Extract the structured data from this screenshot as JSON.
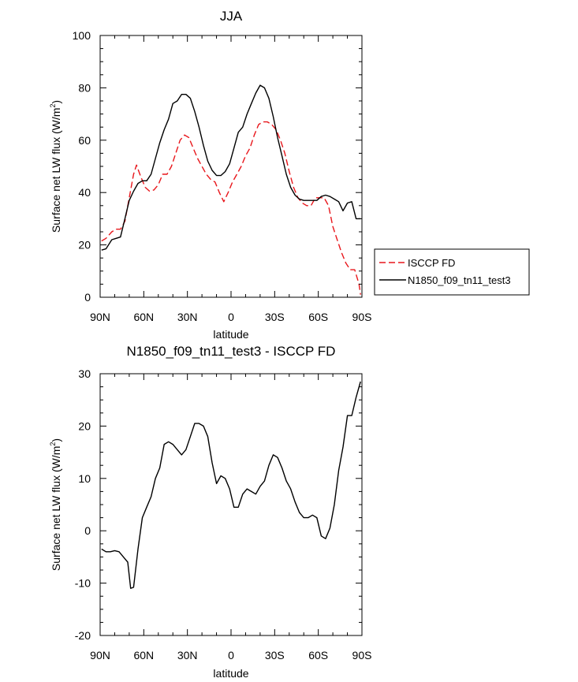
{
  "chart_data": [
    {
      "type": "line",
      "title": "JJA",
      "xlabel": "latitude",
      "ylabel": "Surface net LW flux (W/m",
      "ylabel_sup": "2",
      "ylabel_close": ")",
      "xlim": [
        90,
        -90
      ],
      "ylim": [
        0,
        100
      ],
      "xticks": [
        90,
        60,
        30,
        0,
        -30,
        -60,
        -90
      ],
      "xtick_labels": [
        "90N",
        "60N",
        "30N",
        "0",
        "30S",
        "60S",
        "90S"
      ],
      "yticks": [
        0,
        20,
        40,
        60,
        80,
        100
      ],
      "ytick_labels": [
        "0",
        "20",
        "40",
        "60",
        "80",
        "100"
      ],
      "legend_position": "right-outside",
      "series": [
        {
          "name": "ISCCP FD",
          "color": "#e8161b",
          "dash": "dashed",
          "x": [
            89,
            86,
            82,
            79,
            76,
            73,
            70,
            67,
            65,
            62,
            59,
            56,
            53,
            50,
            47,
            44,
            41,
            38,
            35,
            32,
            29,
            26,
            23,
            20,
            17,
            14,
            11,
            8,
            5,
            2,
            -1,
            -4,
            -7,
            -10,
            -13,
            -16,
            -19,
            -22,
            -25,
            -28,
            -31,
            -34,
            -37,
            -40,
            -43,
            -46,
            -49,
            -52,
            -55,
            -58,
            -61,
            -64,
            -67,
            -70,
            -73,
            -76,
            -79,
            -82,
            -85,
            -88,
            -89
          ],
          "y": [
            21.5,
            22.5,
            25,
            26,
            26,
            29,
            38,
            47,
            50.5,
            46,
            42,
            40.5,
            41,
            43,
            47,
            47,
            50,
            55,
            60,
            62,
            61,
            57,
            53,
            50,
            47,
            45,
            44,
            40,
            36.5,
            40,
            44,
            47,
            50,
            54,
            57,
            62,
            66,
            67,
            67,
            66,
            64,
            60,
            55,
            48,
            42,
            38,
            36,
            35,
            35,
            38,
            38,
            38,
            35,
            27,
            22,
            17,
            13,
            10.5,
            10.5,
            5,
            1
          ]
        },
        {
          "name": "N1850_f09_tn11_test3",
          "color": "#000000",
          "dash": "solid",
          "x": [
            89,
            86,
            82,
            79,
            76,
            73,
            70,
            67,
            64,
            61,
            58,
            55,
            52,
            49,
            46,
            43,
            40,
            37,
            34,
            31,
            28,
            25,
            22,
            19,
            16,
            13,
            10,
            7,
            4,
            1,
            -2,
            -5,
            -8,
            -11,
            -14,
            -17,
            -20,
            -23,
            -26,
            -29,
            -32,
            -35,
            -38,
            -41,
            -44,
            -47,
            -50,
            -53,
            -56,
            -59,
            -62,
            -65,
            -68,
            -71,
            -74,
            -77,
            -80,
            -83,
            -86,
            -89
          ],
          "y": [
            18,
            18.5,
            22,
            22.5,
            23,
            30,
            37,
            40.5,
            43.5,
            44.5,
            44.5,
            47,
            53,
            59,
            64,
            68,
            74,
            75,
            77.5,
            77.5,
            76,
            71,
            65,
            58,
            52,
            48.5,
            46.5,
            46.5,
            48,
            51,
            57,
            63,
            65,
            70,
            74,
            78,
            81,
            80,
            76,
            69,
            61,
            54,
            47,
            42,
            39,
            37.5,
            37,
            37,
            37,
            37,
            38.5,
            39,
            38.5,
            37.5,
            36.5,
            33,
            36,
            36.5,
            30,
            30
          ]
        }
      ]
    },
    {
      "type": "line",
      "title": "N1850_f09_tn11_test3 - ISCCP FD",
      "xlabel": "latitude",
      "ylabel": "Surface net LW flux (W/m",
      "ylabel_sup": "2",
      "ylabel_close": ")",
      "xlim": [
        90,
        -90
      ],
      "ylim": [
        -20,
        30
      ],
      "xticks": [
        90,
        60,
        30,
        0,
        -30,
        -60,
        -90
      ],
      "xtick_labels": [
        "90N",
        "60N",
        "30N",
        "0",
        "30S",
        "60S",
        "90S"
      ],
      "yticks": [
        -20,
        -10,
        0,
        10,
        20,
        30
      ],
      "ytick_labels": [
        "-20",
        "-10",
        "0",
        "10",
        "20",
        "30"
      ],
      "series": [
        {
          "color": "#000000",
          "dash": "solid",
          "x": [
            89,
            86,
            83,
            80,
            77,
            74,
            71,
            69,
            67,
            64,
            61,
            58,
            55,
            52,
            49,
            46,
            43,
            40,
            37,
            34,
            31,
            28,
            25,
            22,
            19,
            16,
            13,
            10,
            7,
            4,
            1,
            -2,
            -5,
            -8,
            -11,
            -14,
            -17,
            -20,
            -23,
            -26,
            -29,
            -32,
            -35,
            -38,
            -41,
            -44,
            -47,
            -50,
            -53,
            -56,
            -59,
            -62,
            -65,
            -68,
            -71,
            -74,
            -77,
            -80,
            -83,
            -86,
            -89
          ],
          "y": [
            -3.5,
            -4,
            -4,
            -3.8,
            -4,
            -5,
            -6,
            -11,
            -10.8,
            -3.5,
            2.5,
            4.5,
            6.5,
            10,
            12,
            16.5,
            17,
            16.5,
            15.5,
            14.5,
            15.5,
            18,
            20.5,
            20.5,
            20,
            18,
            13,
            9,
            10.5,
            10,
            8,
            4.5,
            4.5,
            7,
            8,
            7.5,
            7,
            8.5,
            9.5,
            12.5,
            14.5,
            14,
            12,
            9.5,
            8,
            5.5,
            3.5,
            2.5,
            2.5,
            3,
            2.5,
            -1,
            -1.5,
            0.5,
            5,
            11.5,
            16,
            22,
            22,
            25.5,
            28.5
          ]
        }
      ]
    }
  ]
}
